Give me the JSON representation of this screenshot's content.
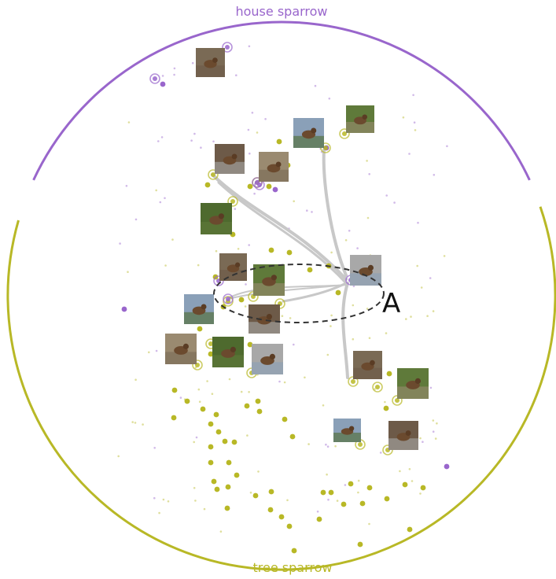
{
  "classes": [
    {
      "name": "house sparrow",
      "color": "#9966cc"
    },
    {
      "name": "tree sparrow",
      "color": "#b8b826"
    }
  ],
  "annotation": {
    "label": "A"
  },
  "colors": {
    "edge": "#c8c8c8",
    "lasso": "#333333",
    "thumbnail_tones": [
      "#7a6a55",
      "#5f7a3a",
      "#8aa0b8",
      "#6d5a48",
      "#9a8a70",
      "#4e6a2e",
      "#a8a8a8"
    ]
  },
  "thumbnail_icon": "sparrow-photo-thumbnail"
}
